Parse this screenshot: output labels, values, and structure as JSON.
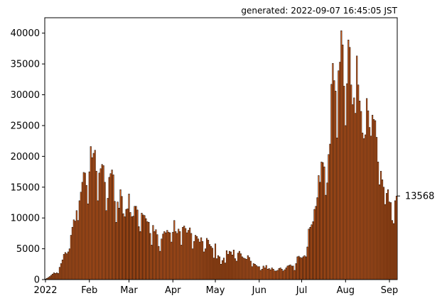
{
  "chart_data": {
    "type": "bar",
    "title": "",
    "annotation": "generated: 2022-09-07 16:45:05 JST",
    "xlabel": "",
    "ylabel": "",
    "x_start": "2022-01-01",
    "ylim": [
      0,
      42500
    ],
    "yticks": [
      0,
      5000,
      10000,
      15000,
      20000,
      25000,
      30000,
      35000,
      40000
    ],
    "xtick_labels": [
      "2022",
      "Feb",
      "Mar",
      "Apr",
      "May",
      "Jun",
      "Jul",
      "Aug",
      "Sep"
    ],
    "last_value_label": "13568",
    "bar_color": "#e8651b",
    "edge_color": "#000000",
    "values": [
      100,
      200,
      350,
      500,
      700,
      900,
      1100,
      1000,
      1100,
      1000,
      2000,
      2600,
      3200,
      4100,
      4400,
      4200,
      4500,
      5000,
      7200,
      8500,
      9700,
      9500,
      11200,
      9600,
      12800,
      14200,
      15800,
      17400,
      17300,
      15300,
      12300,
      17500,
      21600,
      19800,
      20500,
      21000,
      17600,
      12800,
      17300,
      18000,
      18700,
      18500,
      15800,
      11200,
      13200,
      16600,
      17200,
      17800,
      17000,
      12700,
      9300,
      12600,
      11600,
      14600,
      13500,
      10700,
      10200,
      11400,
      11500,
      13900,
      10900,
      10200,
      10300,
      11900,
      11900,
      11300,
      8600,
      7800,
      10800,
      10500,
      10400,
      9900,
      9400,
      9300,
      7500,
      5600,
      8800,
      7800,
      8100,
      7300,
      5400,
      4600,
      6600,
      7400,
      7800,
      7600,
      8000,
      7700,
      7600,
      6100,
      7700,
      9600,
      7800,
      7500,
      8200,
      7800,
      5600,
      8500,
      8700,
      8300,
      7600,
      8000,
      8400,
      7500,
      5000,
      6200,
      7200,
      7000,
      6600,
      6100,
      6800,
      6200,
      4500,
      5000,
      6700,
      6400,
      5700,
      5400,
      5100,
      3500,
      5800,
      3400,
      3900,
      3700,
      2500,
      3100,
      3500,
      2700,
      4700,
      4100,
      4600,
      4500,
      4000,
      4800,
      3400,
      3000,
      4300,
      4600,
      4200,
      3700,
      3500,
      3400,
      3300,
      3900,
      3600,
      3000,
      2100,
      2600,
      2500,
      2300,
      2100,
      2100,
      1500,
      1700,
      2200,
      1900,
      2300,
      1700,
      1800,
      1600,
      1900,
      1700,
      1400,
      1400,
      1500,
      1800,
      1900,
      1700,
      1400,
      1600,
      1900,
      2200,
      2300,
      2400,
      2200,
      2200,
      1500,
      2600,
      3700,
      3800,
      3600,
      3500,
      3700,
      3900,
      3700,
      5300,
      8200,
      8500,
      8900,
      9400,
      11400,
      11900,
      13300,
      16900,
      15800,
      19100,
      19000,
      18300,
      13700,
      15700,
      20300,
      22000,
      31700,
      35100,
      32300,
      30600,
      23000,
      33900,
      35300,
      40400,
      38100,
      31400,
      25000,
      31800,
      38900,
      37700,
      31600,
      28400,
      29500,
      27000,
      36300,
      31600,
      29000,
      27300,
      23800,
      22900,
      23500,
      29400,
      27400,
      24700,
      23300,
      26700,
      26000,
      25800,
      23100,
      19100,
      15400,
      17600,
      16200,
      15000,
      12200,
      14000,
      14600,
      12600,
      12500,
      9600,
      9100,
      12800,
      13568
    ]
  }
}
